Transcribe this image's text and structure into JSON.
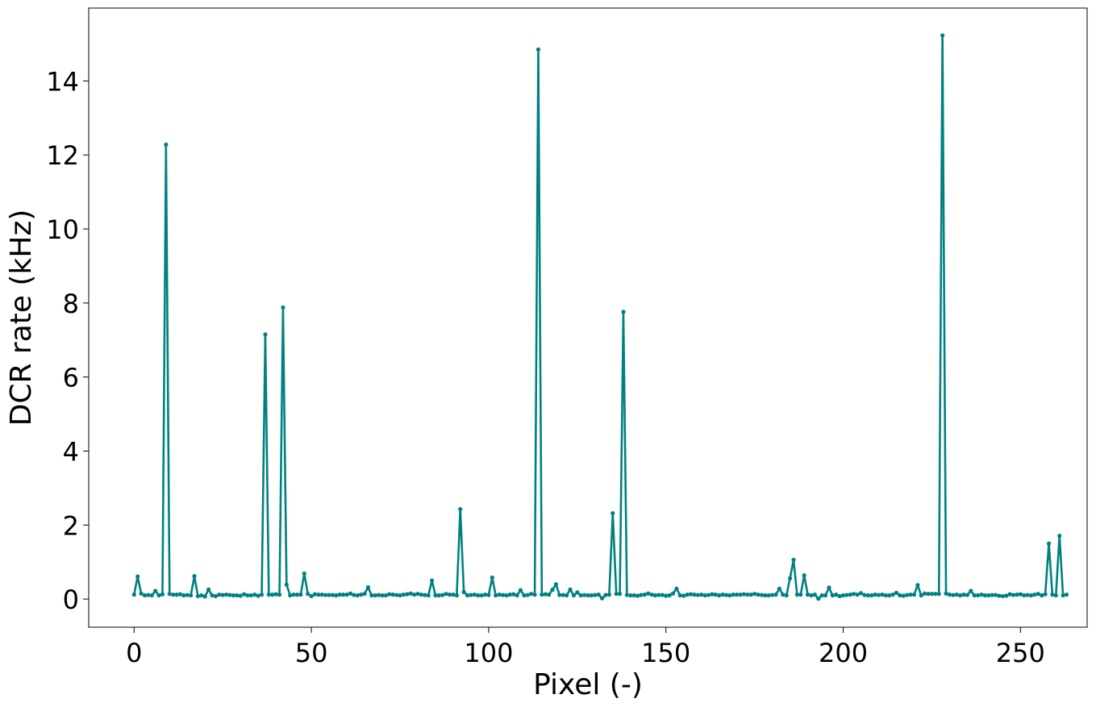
{
  "chart_data": {
    "type": "line",
    "title": "",
    "xlabel": "Pixel (-)",
    "ylabel": "DCR rate (kHz)",
    "xlim": [
      -12.8,
      268.8
    ],
    "ylim": [
      -0.76,
      15.97
    ],
    "xticks": [
      0,
      50,
      100,
      150,
      200,
      250
    ],
    "yticks": [
      0,
      2,
      4,
      6,
      8,
      10,
      12,
      14
    ],
    "grid": false,
    "legend": "none",
    "color": "#008080",
    "series": [
      {
        "values": [
          0.12,
          0.61,
          0.15,
          0.1,
          0.11,
          0.1,
          0.22,
          0.1,
          0.13,
          12.28,
          0.14,
          0.12,
          0.12,
          0.13,
          0.1,
          0.11,
          0.1,
          0.62,
          0.08,
          0.1,
          0.07,
          0.26,
          0.1,
          0.08,
          0.12,
          0.11,
          0.12,
          0.11,
          0.1,
          0.1,
          0.09,
          0.13,
          0.1,
          0.1,
          0.12,
          0.09,
          0.12,
          7.15,
          0.12,
          0.12,
          0.13,
          0.12,
          7.88,
          0.39,
          0.1,
          0.12,
          0.12,
          0.12,
          0.69,
          0.14,
          0.08,
          0.13,
          0.12,
          0.12,
          0.11,
          0.11,
          0.11,
          0.1,
          0.12,
          0.12,
          0.12,
          0.15,
          0.11,
          0.1,
          0.12,
          0.14,
          0.32,
          0.1,
          0.1,
          0.11,
          0.1,
          0.1,
          0.13,
          0.12,
          0.11,
          0.1,
          0.12,
          0.13,
          0.15,
          0.12,
          0.14,
          0.12,
          0.11,
          0.1,
          0.5,
          0.1,
          0.1,
          0.11,
          0.14,
          0.12,
          0.12,
          0.1,
          2.43,
          0.19,
          0.1,
          0.11,
          0.12,
          0.1,
          0.1,
          0.12,
          0.11,
          0.58,
          0.1,
          0.12,
          0.11,
          0.1,
          0.12,
          0.13,
          0.1,
          0.24,
          0.1,
          0.11,
          0.14,
          0.12,
          14.85,
          0.12,
          0.13,
          0.12,
          0.25,
          0.4,
          0.11,
          0.11,
          0.1,
          0.26,
          0.1,
          0.18,
          0.1,
          0.11,
          0.1,
          0.1,
          0.11,
          0.12,
          0.02,
          0.11,
          0.12,
          2.32,
          0.14,
          0.14,
          7.76,
          0.11,
          0.1,
          0.1,
          0.09,
          0.11,
          0.12,
          0.15,
          0.12,
          0.1,
          0.11,
          0.11,
          0.09,
          0.1,
          0.15,
          0.28,
          0.1,
          0.09,
          0.12,
          0.13,
          0.12,
          0.11,
          0.12,
          0.1,
          0.11,
          0.13,
          0.12,
          0.1,
          0.12,
          0.11,
          0.1,
          0.12,
          0.12,
          0.12,
          0.13,
          0.12,
          0.12,
          0.14,
          0.12,
          0.11,
          0.1,
          0.1,
          0.11,
          0.12,
          0.28,
          0.12,
          0.1,
          0.56,
          1.06,
          0.12,
          0.12,
          0.64,
          0.12,
          0.1,
          0.12,
          0.01,
          0.1,
          0.1,
          0.31,
          0.1,
          0.12,
          0.08,
          0.1,
          0.11,
          0.12,
          0.14,
          0.12,
          0.16,
          0.11,
          0.1,
          0.1,
          0.12,
          0.11,
          0.12,
          0.1,
          0.1,
          0.12,
          0.17,
          0.1,
          0.09,
          0.11,
          0.12,
          0.12,
          0.38,
          0.1,
          0.15,
          0.14,
          0.14,
          0.14,
          0.14,
          15.23,
          0.15,
          0.12,
          0.11,
          0.12,
          0.1,
          0.12,
          0.11,
          0.22,
          0.1,
          0.1,
          0.12,
          0.1,
          0.1,
          0.11,
          0.11,
          0.09,
          0.08,
          0.09,
          0.13,
          0.11,
          0.12,
          0.13,
          0.1,
          0.11,
          0.1,
          0.12,
          0.14,
          0.1,
          0.13,
          1.5,
          0.12,
          0.1,
          1.71,
          0.1,
          0.12
        ]
      }
    ]
  }
}
